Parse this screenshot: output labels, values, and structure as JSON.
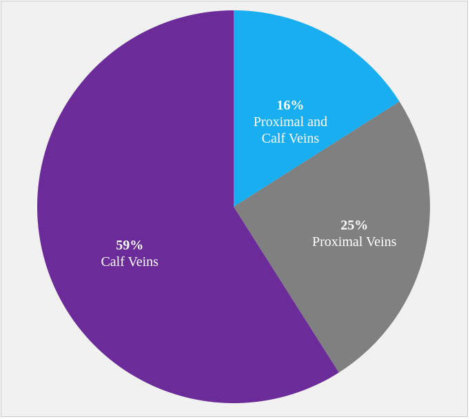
{
  "chart_data": {
    "type": "pie",
    "start": "top",
    "direction": "clockwise",
    "slices": [
      {
        "label": "Proximal and Calf Veins",
        "value": 16,
        "value_label": "16%",
        "label_lines": [
          "Proximal and",
          "Calf Veins"
        ],
        "color": "#18aef0"
      },
      {
        "label": "Proximal Veins",
        "value": 25,
        "value_label": "25%",
        "label_lines": [
          "Proximal Veins"
        ],
        "color": "#808080"
      },
      {
        "label": "Calf Veins",
        "value": 59,
        "value_label": "59%",
        "label_lines": [
          "Calf Veins"
        ],
        "color": "#6b2c99"
      }
    ],
    "legend": "none",
    "background": "#f1f1f1",
    "label_color": "#ffffff"
  }
}
